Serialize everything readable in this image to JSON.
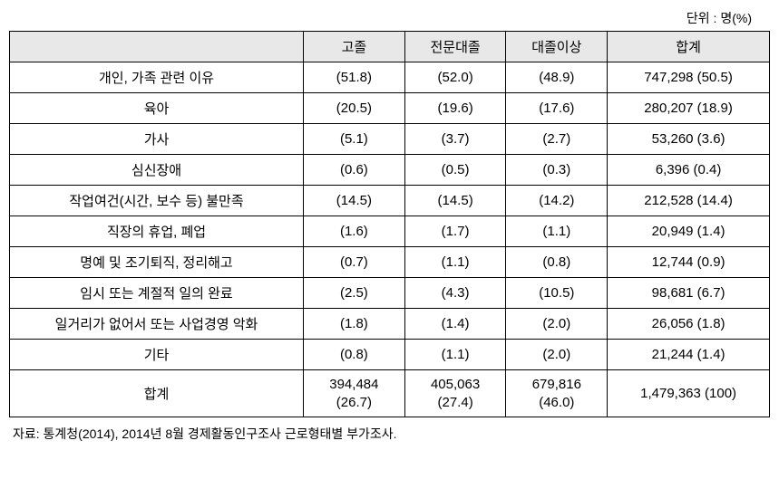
{
  "unit_label": "단위 : 명(%)",
  "headers": {
    "category": "",
    "col1": "고졸",
    "col2": "전문대졸",
    "col3": "대졸이상",
    "col4": "합계"
  },
  "rows": [
    {
      "label": "개인, 가족 관련 이유",
      "c1": "(51.8)",
      "c2": "(52.0)",
      "c3": "(48.9)",
      "c4": "747,298 (50.5)"
    },
    {
      "label": "육아",
      "c1": "(20.5)",
      "c2": "(19.6)",
      "c3": "(17.6)",
      "c4": "280,207 (18.9)"
    },
    {
      "label": "가사",
      "c1": "(5.1)",
      "c2": "(3.7)",
      "c3": "(2.7)",
      "c4": "53,260 (3.6)"
    },
    {
      "label": "심신장애",
      "c1": "(0.6)",
      "c2": "(0.5)",
      "c3": "(0.3)",
      "c4": "6,396 (0.4)"
    },
    {
      "label": "작업여건(시간, 보수 등) 불만족",
      "c1": "(14.5)",
      "c2": "(14.5)",
      "c3": "(14.2)",
      "c4": "212,528 (14.4)"
    },
    {
      "label": "직장의 휴업, 폐업",
      "c1": "(1.6)",
      "c2": "(1.7)",
      "c3": "(1.1)",
      "c4": "20,949 (1.4)"
    },
    {
      "label": "명예 및 조기퇴직, 정리해고",
      "c1": "(0.7)",
      "c2": "(1.1)",
      "c3": "(0.8)",
      "c4": "12,744 (0.9)"
    },
    {
      "label": "임시 또는 계절적 일의 완료",
      "c1": "(2.5)",
      "c2": "(4.3)",
      "c3": "(10.5)",
      "c4": "98,681 (6.7)"
    },
    {
      "label": "일거리가 없어서 또는 사업경영 악화",
      "c1": "(1.8)",
      "c2": "(1.4)",
      "c3": "(2.0)",
      "c4": "26,056 (1.8)"
    },
    {
      "label": "기타",
      "c1": "(0.8)",
      "c2": "(1.1)",
      "c3": "(2.0)",
      "c4": "21,244 (1.4)"
    }
  ],
  "total_row": {
    "label": "합계",
    "c1_line1": "394,484",
    "c1_line2": "(26.7)",
    "c2_line1": "405,063",
    "c2_line2": "(27.4)",
    "c3_line1": "679,816",
    "c3_line2": "(46.0)",
    "c4": "1,479,363 (100)"
  },
  "source_note": "자료: 통계청(2014), 2014년 8월 경제활동인구조사 근로형태별 부가조사."
}
